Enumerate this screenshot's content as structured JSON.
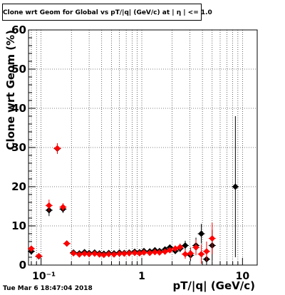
{
  "chart_data": {
    "type": "scatter",
    "title": "Clone wrt Geom for Global vs pT/|q| (GeV/c) at | η | <= 1.0",
    "xlabel": "pT/|q| (GeV/c)",
    "ylabel": "Clone wrt Geom (%)",
    "xscale": "log",
    "xlim": [
      0.075,
      14
    ],
    "ylim": [
      0,
      60
    ],
    "grid": true,
    "x_tick_labels": [
      "10⁻¹",
      "1",
      "10"
    ],
    "y_tick_labels": [
      "0",
      "10",
      "20",
      "30",
      "40",
      "50",
      "60"
    ],
    "series": [
      {
        "color": "#000000",
        "marker": "diamond",
        "x": [
          0.08,
          0.095,
          0.12,
          0.145,
          0.165,
          0.18,
          0.21,
          0.24,
          0.27,
          0.3,
          0.34,
          0.38,
          0.42,
          0.47,
          0.53,
          0.6,
          0.67,
          0.75,
          0.85,
          0.95,
          1.05,
          1.2,
          1.35,
          1.5,
          1.7,
          1.9,
          2.15,
          2.4,
          2.7,
          3.05,
          3.45,
          3.9,
          4.4,
          5.0,
          8.5
        ],
        "y": [
          3.5,
          2.2,
          14.0,
          29.7,
          14.3,
          5.5,
          3.2,
          3.0,
          3.3,
          3.1,
          3.2,
          3.0,
          2.9,
          3.1,
          3.0,
          3.2,
          3.1,
          3.2,
          3.4,
          3.3,
          3.6,
          3.5,
          3.8,
          3.6,
          4.0,
          4.5,
          3.6,
          4.2,
          5.0,
          2.5,
          5.0,
          8.0,
          1.5,
          5.0,
          20.0
        ],
        "yerr": [
          0.8,
          0.6,
          1.5,
          1.3,
          1.0,
          0.7,
          0.4,
          0.3,
          0.3,
          0.3,
          0.3,
          0.3,
          0.3,
          0.3,
          0.3,
          0.3,
          0.3,
          0.3,
          0.4,
          0.4,
          0.4,
          0.4,
          0.5,
          0.5,
          0.6,
          0.7,
          0.8,
          0.9,
          1.2,
          1.5,
          2.0,
          2.5,
          2.5,
          4.0,
          18.0
        ]
      },
      {
        "color": "#ff0000",
        "marker": "diamond",
        "x": [
          0.08,
          0.095,
          0.12,
          0.145,
          0.165,
          0.18,
          0.21,
          0.24,
          0.27,
          0.3,
          0.34,
          0.38,
          0.42,
          0.47,
          0.53,
          0.6,
          0.67,
          0.75,
          0.85,
          0.95,
          1.05,
          1.2,
          1.35,
          1.5,
          1.7,
          1.9,
          2.15,
          2.4,
          2.7,
          3.05,
          3.45,
          3.9,
          4.4,
          5.0
        ],
        "y": [
          4.2,
          2.3,
          15.2,
          29.8,
          14.8,
          5.5,
          3.0,
          2.7,
          2.9,
          2.8,
          2.9,
          2.7,
          2.6,
          2.8,
          2.7,
          2.9,
          2.9,
          3.0,
          3.1,
          3.0,
          3.2,
          3.1,
          3.3,
          3.2,
          3.4,
          3.8,
          4.2,
          4.6,
          2.8,
          3.0,
          4.5,
          2.8,
          3.5,
          6.8
        ],
        "yerr": [
          0.8,
          0.6,
          1.5,
          1.3,
          1.0,
          0.7,
          0.4,
          0.3,
          0.3,
          0.3,
          0.3,
          0.3,
          0.3,
          0.3,
          0.3,
          0.3,
          0.3,
          0.3,
          0.4,
          0.4,
          0.4,
          0.4,
          0.5,
          0.5,
          0.6,
          0.7,
          0.8,
          0.9,
          1.2,
          1.5,
          2.0,
          2.5,
          2.5,
          4.0
        ]
      }
    ]
  },
  "timestamp": "Tue Mar  6 18:47:04 2018"
}
